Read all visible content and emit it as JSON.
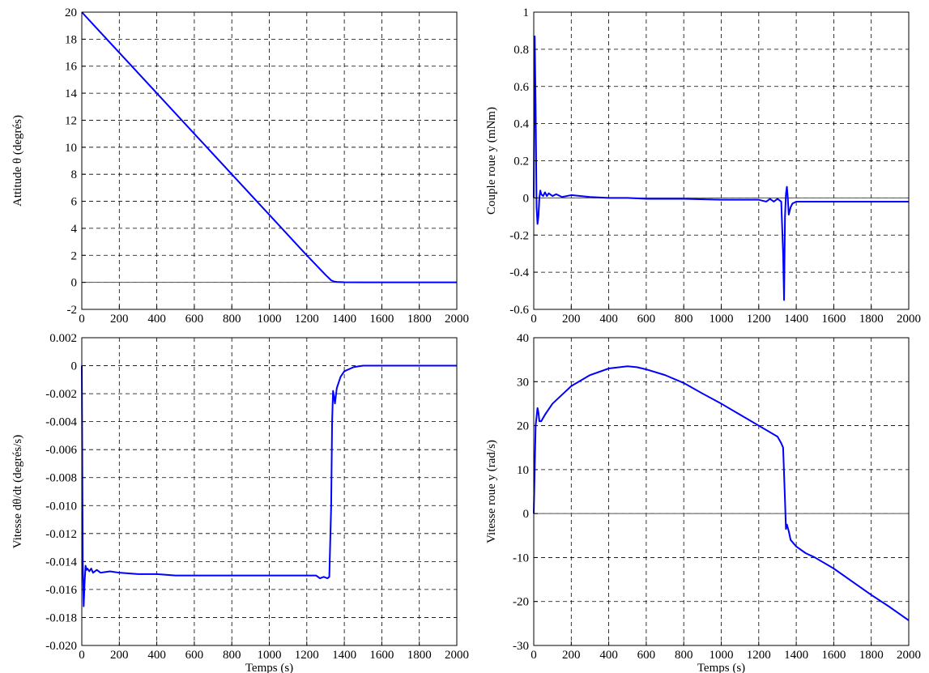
{
  "colors": {
    "series": "#0000ff",
    "axis": "#000000",
    "grid": "#000000",
    "zero_line": "#555555"
  },
  "chart_data": [
    {
      "id": "attitude",
      "type": "line",
      "title": "",
      "xlabel": "",
      "ylabel": "Attitude θ (degrés)",
      "xlim": [
        0,
        2000
      ],
      "ylim": [
        -2,
        20
      ],
      "xticks": [
        0,
        200,
        400,
        600,
        800,
        1000,
        1200,
        1400,
        1600,
        1800,
        2000
      ],
      "yticks": [
        -2,
        0,
        2,
        4,
        6,
        8,
        10,
        12,
        14,
        16,
        18,
        20
      ],
      "ytick_labels": [
        "-2",
        "0",
        "2",
        "4",
        "6",
        "8",
        "10",
        "12",
        "14",
        "16",
        "18",
        "20"
      ],
      "grid": true,
      "zero_line": true,
      "series": [
        {
          "color": "#0000ff",
          "x": [
            0,
            100,
            200,
            400,
            600,
            800,
            1000,
            1200,
            1300,
            1330,
            1345,
            1360,
            1400,
            1500,
            2000
          ],
          "y": [
            20,
            18.5,
            17.0,
            14.0,
            11.0,
            8.0,
            5.0,
            2.0,
            0.55,
            0.15,
            0.06,
            0.03,
            0.01,
            0,
            0
          ]
        }
      ]
    },
    {
      "id": "couple",
      "type": "line",
      "title": "",
      "xlabel": "",
      "ylabel": "Couple roue y (mNm)",
      "xlim": [
        0,
        2000
      ],
      "ylim": [
        -0.6,
        1
      ],
      "xticks": [
        0,
        200,
        400,
        600,
        800,
        1000,
        1200,
        1400,
        1600,
        1800,
        2000
      ],
      "yticks": [
        -0.6,
        -0.4,
        -0.2,
        0,
        0.2,
        0.4,
        0.6,
        0.8,
        1
      ],
      "ytick_labels": [
        "-0.6",
        "-0.4",
        "-0.2",
        "0",
        "0.2",
        "0.4",
        "0.6",
        "0.8",
        "1"
      ],
      "grid": true,
      "zero_line": true,
      "series": [
        {
          "color": "#0000ff",
          "x": [
            0,
            5,
            10,
            15,
            20,
            25,
            30,
            35,
            40,
            50,
            60,
            70,
            80,
            100,
            120,
            150,
            200,
            300,
            400,
            500,
            600,
            800,
            1000,
            1200,
            1240,
            1260,
            1280,
            1300,
            1320,
            1330,
            1335,
            1340,
            1345,
            1350,
            1355,
            1360,
            1370,
            1380,
            1400,
            1500,
            2000
          ],
          "y": [
            0,
            0.87,
            0.5,
            -0.05,
            -0.14,
            -0.1,
            0.0,
            0.04,
            0.02,
            0.01,
            0.03,
            0.01,
            0.025,
            0.01,
            0.02,
            0.005,
            0.015,
            0.005,
            0.0,
            0.0,
            -0.005,
            -0.005,
            -0.01,
            -0.01,
            -0.02,
            -0.005,
            -0.02,
            -0.005,
            -0.02,
            -0.3,
            -0.55,
            -0.1,
            0.02,
            0.06,
            0.0,
            -0.09,
            -0.05,
            -0.03,
            -0.02,
            -0.02,
            -0.02
          ]
        }
      ]
    },
    {
      "id": "vitesse-theta",
      "type": "line",
      "title": "",
      "xlabel": "Temps (s)",
      "ylabel": "Vitesse dθ/dt (degrés/s)",
      "xlim": [
        0,
        2000
      ],
      "ylim": [
        -0.02,
        0.002
      ],
      "xticks": [
        0,
        200,
        400,
        600,
        800,
        1000,
        1200,
        1400,
        1600,
        1800,
        2000
      ],
      "yticks": [
        -0.02,
        -0.018,
        -0.016,
        -0.014,
        -0.012,
        -0.01,
        -0.008,
        -0.006,
        -0.004,
        -0.002,
        0,
        0.002
      ],
      "ytick_labels": [
        "-0.020",
        "-0.018",
        "-0.016",
        "-0.014",
        "-0.012",
        "-0.010",
        "-0.008",
        "-0.006",
        "-0.004",
        "-0.002",
        "0",
        "0.002"
      ],
      "grid": true,
      "zero_line": false,
      "series": [
        {
          "color": "#0000ff",
          "x": [
            0,
            5,
            10,
            15,
            20,
            25,
            30,
            40,
            50,
            60,
            80,
            100,
            150,
            200,
            300,
            400,
            500,
            600,
            1000,
            1200,
            1250,
            1270,
            1290,
            1310,
            1320,
            1330,
            1335,
            1340,
            1345,
            1350,
            1360,
            1380,
            1400,
            1450,
            1500,
            2000
          ],
          "y": [
            0,
            -0.014,
            -0.0172,
            -0.0155,
            -0.0143,
            -0.0146,
            -0.0145,
            -0.0147,
            -0.0145,
            -0.0148,
            -0.0146,
            -0.0148,
            -0.0147,
            -0.0148,
            -0.0149,
            -0.0149,
            -0.015,
            -0.015,
            -0.015,
            -0.015,
            -0.015,
            -0.0152,
            -0.0151,
            -0.0152,
            -0.0151,
            -0.01,
            -0.004,
            -0.0018,
            -0.0022,
            -0.0027,
            -0.0016,
            -0.0008,
            -0.0004,
            -0.0001,
            0,
            0
          ]
        }
      ]
    },
    {
      "id": "vitesse-roue",
      "type": "line",
      "title": "",
      "xlabel": "Temps (s)",
      "ylabel": "Vitesse roue y (rad/s)",
      "xlim": [
        0,
        2000
      ],
      "ylim": [
        -30,
        40
      ],
      "xticks": [
        0,
        200,
        400,
        600,
        800,
        1000,
        1200,
        1400,
        1600,
        1800,
        2000
      ],
      "yticks": [
        -30,
        -20,
        -10,
        0,
        10,
        20,
        30,
        40
      ],
      "ytick_labels": [
        "-30",
        "-20",
        "-10",
        "0",
        "10",
        "20",
        "30",
        "40"
      ],
      "grid": true,
      "zero_line": true,
      "series": [
        {
          "color": "#0000ff",
          "x": [
            0,
            5,
            10,
            15,
            20,
            25,
            30,
            40,
            60,
            100,
            150,
            200,
            300,
            400,
            500,
            550,
            600,
            700,
            800,
            900,
            1000,
            1100,
            1200,
            1300,
            1320,
            1330,
            1340,
            1345,
            1350,
            1360,
            1370,
            1400,
            1450,
            1500,
            1600,
            1700,
            1800,
            1900,
            2000
          ],
          "y": [
            0,
            10,
            20,
            22,
            24,
            23,
            21,
            21,
            22.5,
            25,
            27,
            29,
            31.5,
            33,
            33.5,
            33.3,
            32.8,
            31.5,
            29.7,
            27.3,
            25,
            22.5,
            20,
            17.5,
            16,
            15,
            3,
            -3.5,
            -2.5,
            -4,
            -6,
            -7.5,
            -9,
            -10,
            -12.5,
            -15.5,
            -18.5,
            -21.3,
            -24.3
          ]
        }
      ]
    }
  ]
}
